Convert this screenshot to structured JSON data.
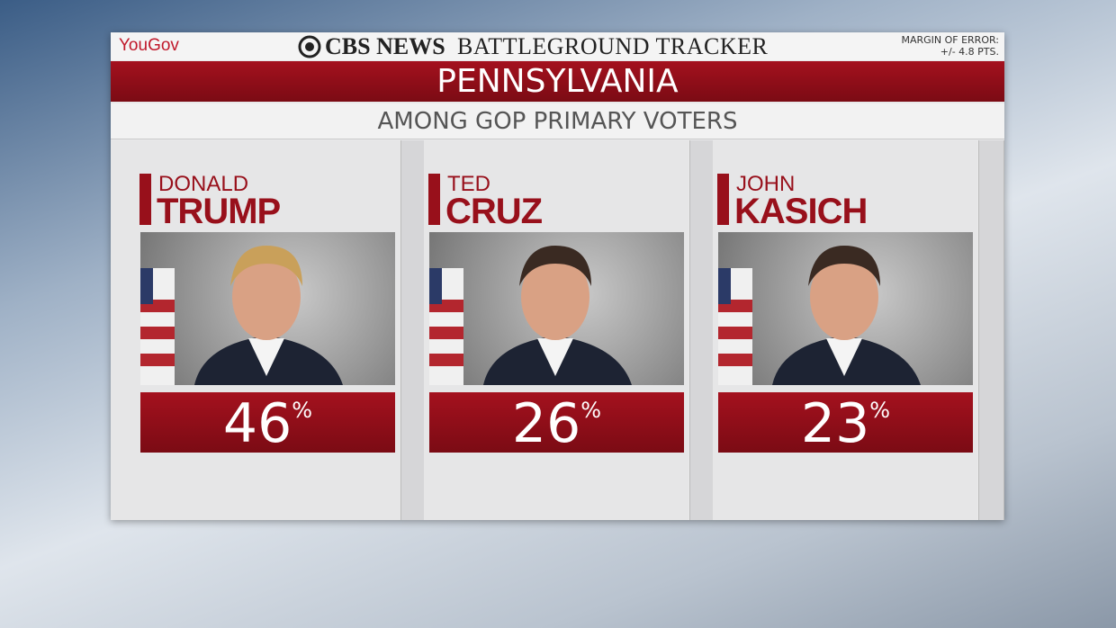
{
  "header": {
    "brand": "YouGov",
    "network": "CBS NEWS",
    "title": "BATTLEGROUND TRACKER",
    "margin_label": "MARGIN OF ERROR:",
    "margin_value": "+/- 4.8 PTS."
  },
  "state": "PENNSYLVANIA",
  "subtitle": "AMONG GOP PRIMARY VOTERS",
  "candidates": [
    {
      "first": "DONALD",
      "last": "TRUMP",
      "percent": 46,
      "unit": "%"
    },
    {
      "first": "TED",
      "last": "CRUZ",
      "percent": 26,
      "unit": "%"
    },
    {
      "first": "JOHN",
      "last": "KASICH",
      "percent": 23,
      "unit": "%"
    }
  ]
}
